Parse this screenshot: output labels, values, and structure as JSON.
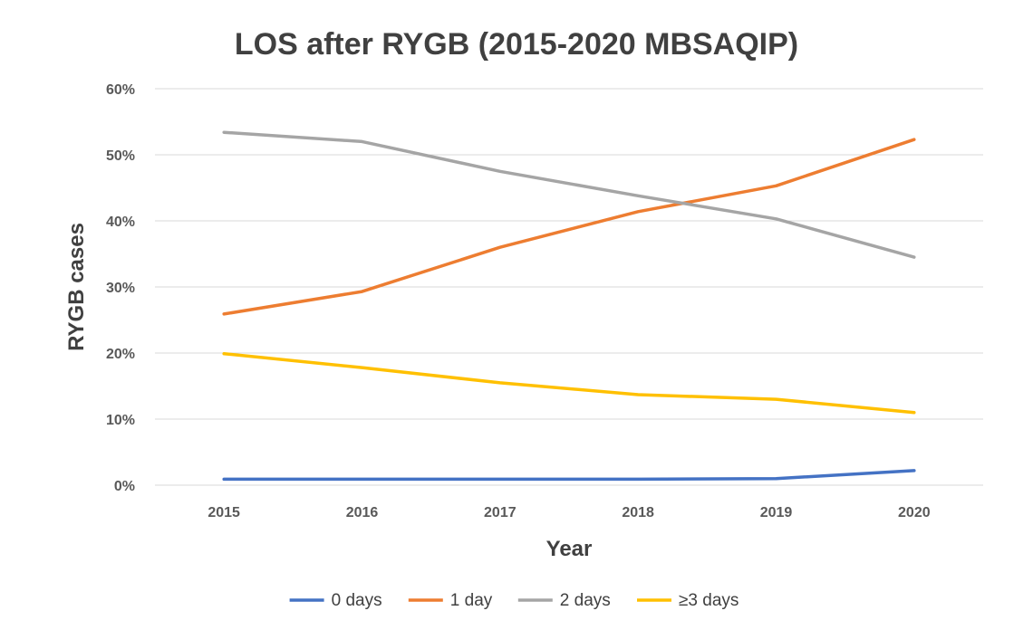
{
  "chart_data": {
    "type": "line",
    "title": "LOS after RYGB (2015-2020 MBSAQIP)",
    "xlabel": "Year",
    "ylabel": "RYGB cases",
    "categories": [
      "2015",
      "2016",
      "2017",
      "2018",
      "2019",
      "2020"
    ],
    "y_tick_labels": [
      "0%",
      "10%",
      "20%",
      "30%",
      "40%",
      "50%",
      "60%"
    ],
    "ylim": [
      0,
      60
    ],
    "grid": true,
    "legend_position": "bottom",
    "series": [
      {
        "name": "0 days",
        "color": "#4472c4",
        "values": [
          0.9,
          0.9,
          0.9,
          0.9,
          1.0,
          2.2
        ]
      },
      {
        "name": "1 day",
        "color": "#ed7d31",
        "values": [
          25.9,
          29.3,
          36.0,
          41.4,
          45.3,
          52.3
        ]
      },
      {
        "name": "2 days",
        "color": "#a5a5a5",
        "values": [
          53.4,
          52.0,
          47.5,
          43.8,
          40.3,
          34.5
        ]
      },
      {
        "name": "≥3 days",
        "color": "#ffc000",
        "values": [
          19.9,
          17.8,
          15.5,
          13.7,
          13.0,
          11.0
        ]
      }
    ]
  }
}
